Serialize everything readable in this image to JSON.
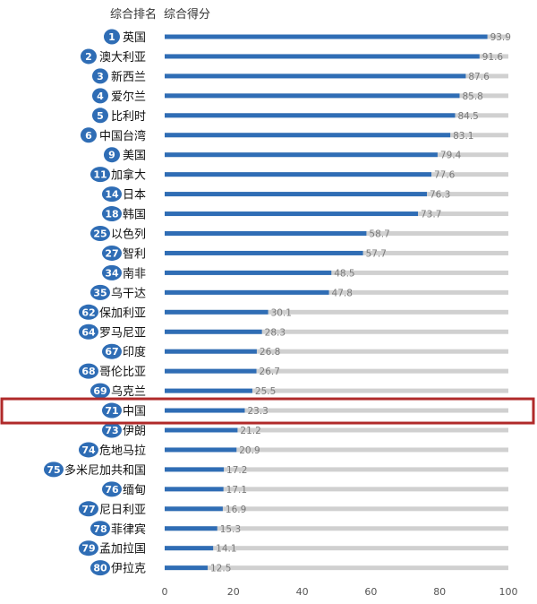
{
  "chart_data": {
    "type": "bar",
    "orientation": "horizontal",
    "rank_header": "综合排名",
    "score_header": "综合得分",
    "xlim": [
      0,
      100
    ],
    "xticks": [
      0,
      20,
      40,
      60,
      80,
      100
    ],
    "colors": {
      "bar": "#2f6db5",
      "track": "#d0d0d0",
      "badge": "#2f6db5",
      "highlight_frame": "#b02a2a"
    },
    "highlight": "中国",
    "rows": [
      {
        "rank": "1",
        "name": "英国",
        "value": 93.9
      },
      {
        "rank": "2",
        "name": "澳大利亚",
        "value": 91.6
      },
      {
        "rank": "3",
        "name": "新西兰",
        "value": 87.6
      },
      {
        "rank": "4",
        "name": "爱尔兰",
        "value": 85.8
      },
      {
        "rank": "5",
        "name": "比利时",
        "value": 84.5
      },
      {
        "rank": "6",
        "name": "中国台湾",
        "value": 83.1
      },
      {
        "rank": "9",
        "name": "美国",
        "value": 79.4
      },
      {
        "rank": "11",
        "name": "加拿大",
        "value": 77.6
      },
      {
        "rank": "14",
        "name": "日本",
        "value": 76.3
      },
      {
        "rank": "18",
        "name": "韩国",
        "value": 73.7
      },
      {
        "rank": "25",
        "name": "以色列",
        "value": 58.7
      },
      {
        "rank": "27",
        "name": "智利",
        "value": 57.7
      },
      {
        "rank": "34",
        "name": "南非",
        "value": 48.5
      },
      {
        "rank": "35",
        "name": "乌干达",
        "value": 47.8
      },
      {
        "rank": "62",
        "name": "保加利亚",
        "value": 30.1
      },
      {
        "rank": "64",
        "name": "罗马尼亚",
        "value": 28.3
      },
      {
        "rank": "67",
        "name": "印度",
        "value": 26.8
      },
      {
        "rank": "68",
        "name": "哥伦比亚",
        "value": 26.7
      },
      {
        "rank": "69",
        "name": "乌克兰",
        "value": 25.5
      },
      {
        "rank": "71",
        "name": "中国",
        "value": 23.3
      },
      {
        "rank": "73",
        "name": "伊朗",
        "value": 21.2
      },
      {
        "rank": "74",
        "name": "危地马拉",
        "value": 20.9
      },
      {
        "rank": "75",
        "name": "多米尼加共和国",
        "value": 17.2
      },
      {
        "rank": "76",
        "name": "缅甸",
        "value": 17.1
      },
      {
        "rank": "77",
        "name": "尼日利亚",
        "value": 16.9
      },
      {
        "rank": "78",
        "name": "菲律宾",
        "value": 15.3
      },
      {
        "rank": "79",
        "name": "孟加拉国",
        "value": 14.1
      },
      {
        "rank": "80",
        "name": "伊拉克",
        "value": 12.5
      }
    ]
  }
}
